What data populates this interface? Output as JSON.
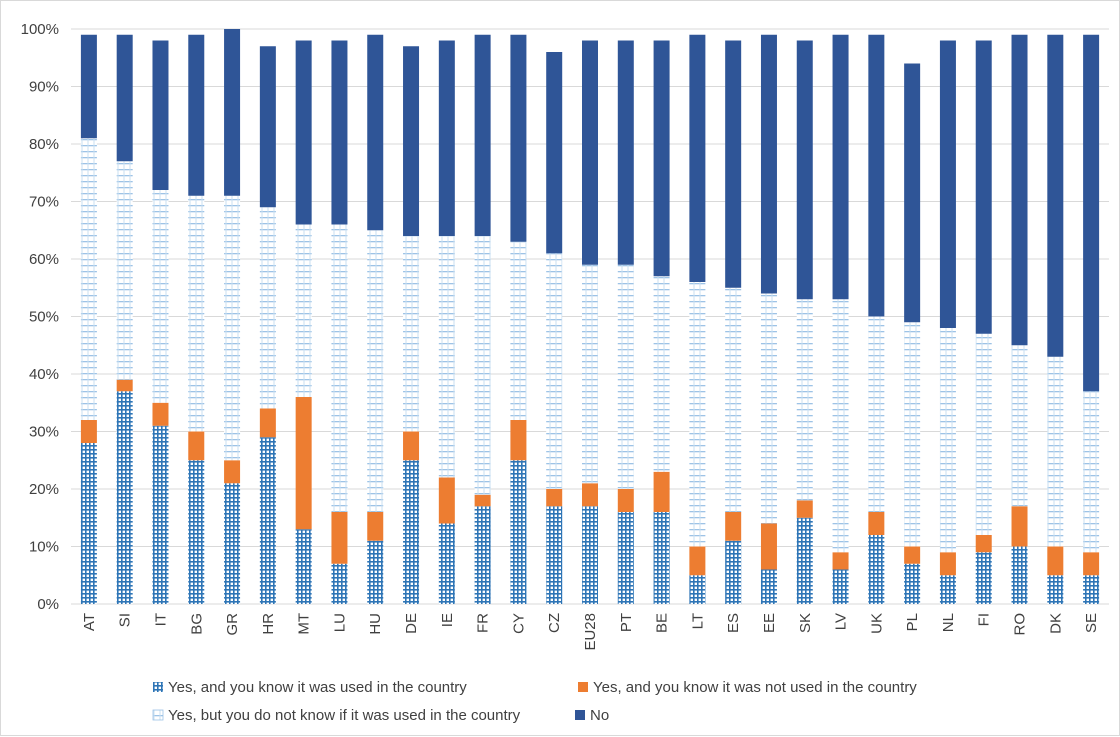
{
  "chart_data": {
    "type": "bar",
    "stacked": true,
    "categories": [
      "AT",
      "SI",
      "IT",
      "BG",
      "GR",
      "HR",
      "MT",
      "LU",
      "HU",
      "DE",
      "IE",
      "FR",
      "CY",
      "CZ",
      "EU28",
      "PT",
      "BE",
      "LT",
      "ES",
      "EE",
      "SK",
      "LV",
      "UK",
      "PL",
      "NL",
      "FI",
      "RO",
      "DK",
      "SE"
    ],
    "series": [
      {
        "name": "Yes, and you know it was used in the country",
        "color": "#2e75b6",
        "pattern": "grid",
        "values": [
          28,
          37,
          31,
          25,
          21,
          29,
          13,
          7,
          11,
          25,
          14,
          17,
          25,
          17,
          17,
          16,
          16,
          5,
          11,
          6,
          15,
          6,
          12,
          7,
          5,
          9,
          10,
          5,
          5
        ]
      },
      {
        "name": "Yes, and you know it was not used in the country",
        "color": "#ed7d31",
        "pattern": "solid",
        "values": [
          4,
          2,
          4,
          5,
          4,
          5,
          23,
          9,
          5,
          5,
          8,
          2,
          7,
          3,
          4,
          4,
          7,
          5,
          5,
          8,
          3,
          3,
          4,
          3,
          4,
          3,
          7,
          5,
          4
        ]
      },
      {
        "name": "Yes, but you do not know if it was used in the country",
        "color": "#9dc3e6",
        "pattern": "hlines",
        "values": [
          49,
          38,
          37,
          41,
          46,
          35,
          30,
          50,
          49,
          34,
          42,
          45,
          31,
          41,
          38,
          39,
          34,
          46,
          39,
          40,
          35,
          44,
          34,
          39,
          39,
          35,
          28,
          33,
          28
        ]
      },
      {
        "name": "No",
        "color": "#2f5597",
        "pattern": "solid",
        "values": [
          18,
          22,
          26,
          28,
          29,
          28,
          32,
          32,
          34,
          33,
          34,
          35,
          36,
          35,
          39,
          39,
          41,
          43,
          43,
          45,
          45,
          46,
          49,
          45,
          50,
          51,
          54,
          56,
          62
        ]
      }
    ],
    "yticks": [
      "0%",
      "10%",
      "20%",
      "30%",
      "40%",
      "50%",
      "60%",
      "70%",
      "80%",
      "90%",
      "100%"
    ],
    "ylim": [
      0,
      100
    ],
    "grid": true,
    "legend": "bottom"
  }
}
